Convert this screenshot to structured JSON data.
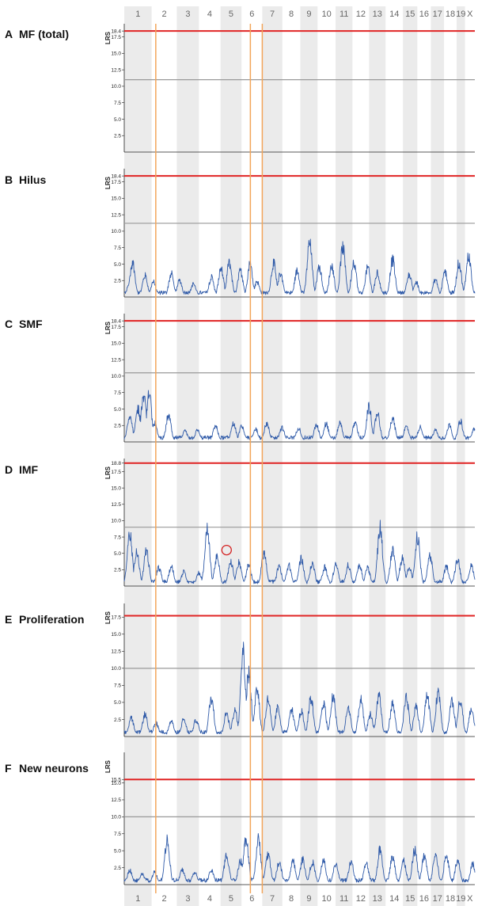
{
  "chromosomes": [
    "1",
    "2",
    "3",
    "4",
    "5",
    "6",
    "7",
    "8",
    "9",
    "10",
    "11",
    "12",
    "13",
    "14",
    "15",
    "16",
    "17",
    "18",
    "19",
    "X"
  ],
  "chromosome_relative_lengths": [
    1.98,
    1.82,
    1.6,
    1.56,
    1.52,
    1.5,
    1.45,
    1.3,
    1.25,
    1.3,
    1.22,
    1.2,
    1.2,
    1.25,
    1.04,
    0.98,
    0.95,
    0.91,
    0.61,
    0.71
  ],
  "colors": {
    "significance_line": "#e02424",
    "suggestive_line": "#999999",
    "trace": "#2f5aa8",
    "highlight_loci": "#f2a55a",
    "chromosome_band": "#ebebeb",
    "circle": "#d42020"
  },
  "highlight_loci_chromosomes": [
    "1",
    "5",
    "5",
    "15",
    "X"
  ],
  "chart_data": [
    {
      "type": "line",
      "panel_letter": "A",
      "title": "MF (total)",
      "ylabel": "LRS",
      "yticks": [
        "2.5",
        "5.0",
        "7.5",
        "10.0",
        "12.5",
        "15.0",
        "17.5",
        "18.4"
      ],
      "ytick_values": [
        2.5,
        5.0,
        7.5,
        10.0,
        12.5,
        15.0,
        17.5,
        18.4
      ],
      "ylim": [
        0,
        19.5
      ],
      "significance_threshold": 18.4,
      "suggestive_threshold": 11.0,
      "series": []
    },
    {
      "type": "line",
      "panel_letter": "B",
      "title": "Hilus",
      "ylabel": "LRS",
      "yticks": [
        "2.5",
        "5.0",
        "7.5",
        "10.0",
        "12.5",
        "15.0",
        "17.5",
        "18.4"
      ],
      "ytick_values": [
        2.5,
        5.0,
        7.5,
        10.0,
        12.5,
        15.0,
        17.5,
        18.4
      ],
      "ylim": [
        0,
        19.5
      ],
      "significance_threshold": 18.4,
      "suggestive_threshold": 11.2,
      "peaks": [
        [
          0.4,
          2.5
        ],
        [
          0.6,
          5.8
        ],
        [
          1.5,
          3.6
        ],
        [
          2.1,
          2.6
        ],
        [
          3.4,
          3.9
        ],
        [
          4.0,
          2.8
        ],
        [
          5.0,
          2.2
        ],
        [
          6.3,
          3.3
        ],
        [
          7.0,
          4.8
        ],
        [
          7.6,
          5.7
        ],
        [
          8.4,
          4.4
        ],
        [
          9.1,
          5.6
        ],
        [
          9.6,
          2.6
        ],
        [
          10.8,
          5.7
        ],
        [
          11.3,
          4.0
        ],
        [
          12.5,
          4.4
        ],
        [
          13.4,
          9.0
        ],
        [
          14.1,
          5.1
        ],
        [
          15.0,
          5.3
        ],
        [
          15.8,
          8.4
        ],
        [
          16.6,
          6.0
        ],
        [
          17.6,
          4.9
        ],
        [
          18.3,
          4.0
        ],
        [
          19.4,
          6.3
        ],
        [
          20.6,
          3.9
        ],
        [
          21.1,
          2.6
        ],
        [
          22.5,
          2.9
        ],
        [
          23.2,
          4.2
        ],
        [
          24.2,
          5.7
        ],
        [
          24.9,
          6.9
        ],
        [
          25.8,
          2.4
        ],
        [
          26.6,
          4.6
        ],
        [
          27.7,
          3.6
        ],
        [
          28.5,
          3.6
        ],
        [
          29.4,
          4.3
        ],
        [
          30.6,
          2.6
        ],
        [
          31.2,
          2.4
        ],
        [
          32.4,
          1.6
        ],
        [
          33.7,
          2.9
        ]
      ],
      "series": [
        {
          "values_shown_as": "trace"
        }
      ]
    },
    {
      "type": "line",
      "panel_letter": "C",
      "title": "SMF",
      "ylabel": "LRS",
      "yticks": [
        "2.5",
        "5.0",
        "7.5",
        "10.0",
        "12.5",
        "15.0",
        "17.5",
        "18.4"
      ],
      "ytick_values": [
        2.5,
        5.0,
        7.5,
        10.0,
        12.5,
        15.0,
        17.5,
        18.4
      ],
      "ylim": [
        0,
        19.5
      ],
      "significance_threshold": 18.4,
      "suggestive_threshold": 10.5,
      "peaks": [
        [
          0.4,
          4.5
        ],
        [
          1.0,
          5.5
        ],
        [
          1.4,
          7.8
        ],
        [
          1.8,
          8.0
        ],
        [
          2.2,
          3.2
        ],
        [
          3.2,
          4.4
        ],
        [
          4.4,
          1.8
        ],
        [
          5.3,
          2.0
        ],
        [
          6.6,
          2.7
        ],
        [
          7.9,
          3.1
        ],
        [
          8.5,
          2.6
        ],
        [
          9.5,
          2.2
        ],
        [
          10.3,
          3.1
        ],
        [
          11.4,
          2.4
        ],
        [
          12.6,
          2.4
        ],
        [
          13.9,
          2.8
        ],
        [
          14.6,
          3.1
        ],
        [
          15.6,
          3.2
        ],
        [
          16.7,
          3.2
        ],
        [
          17.7,
          5.8
        ],
        [
          18.3,
          5.0
        ],
        [
          19.4,
          4.0
        ],
        [
          20.4,
          2.6
        ],
        [
          21.4,
          2.5
        ],
        [
          22.5,
          2.0
        ],
        [
          23.5,
          2.8
        ],
        [
          24.3,
          3.6
        ],
        [
          25.3,
          2.2
        ],
        [
          26.2,
          6.9
        ],
        [
          27.2,
          2.4
        ],
        [
          28.4,
          11.6
        ],
        [
          29.4,
          3.1
        ],
        [
          30.5,
          2.4
        ],
        [
          31.6,
          1.8
        ],
        [
          32.7,
          1.5
        ],
        [
          33.6,
          2.4
        ]
      ],
      "series": [
        {
          "values_shown_as": "trace"
        }
      ]
    },
    {
      "type": "line",
      "panel_letter": "D",
      "title": "IMF",
      "ylabel": "LRS",
      "yticks": [
        "2.5",
        "5.0",
        "7.5",
        "10.0",
        "12.5",
        "15.0",
        "17.5",
        "18.8"
      ],
      "ytick_values": [
        2.5,
        5.0,
        7.5,
        10.0,
        12.5,
        15.0,
        17.5,
        18.8
      ],
      "ylim": [
        0,
        19.5
      ],
      "significance_threshold": 18.8,
      "suggestive_threshold": 9.0,
      "circle_marker": [
        7.4,
        5.5
      ],
      "peaks": [
        [
          0.4,
          9.0
        ],
        [
          0.9,
          5.8
        ],
        [
          1.6,
          6.1
        ],
        [
          2.5,
          3.1
        ],
        [
          3.4,
          3.3
        ],
        [
          4.3,
          2.4
        ],
        [
          5.4,
          2.2
        ],
        [
          6.0,
          9.5
        ],
        [
          6.7,
          4.8
        ],
        [
          7.7,
          4.1
        ],
        [
          8.3,
          4.0
        ],
        [
          9.0,
          3.5
        ],
        [
          10.1,
          5.6
        ],
        [
          11.2,
          3.3
        ],
        [
          11.9,
          3.5
        ],
        [
          12.8,
          4.7
        ],
        [
          13.6,
          3.8
        ],
        [
          14.5,
          3.2
        ],
        [
          15.3,
          3.6
        ],
        [
          16.2,
          3.5
        ],
        [
          17.0,
          3.6
        ],
        [
          17.6,
          3.0
        ],
        [
          18.5,
          9.7
        ],
        [
          19.4,
          6.0
        ],
        [
          20.1,
          4.6
        ],
        [
          20.6,
          3.2
        ],
        [
          21.2,
          8.2
        ],
        [
          22.1,
          5.1
        ],
        [
          23.3,
          3.3
        ],
        [
          24.1,
          4.6
        ],
        [
          25.1,
          3.4
        ],
        [
          26.1,
          3.2
        ],
        [
          27.0,
          3.6
        ],
        [
          27.9,
          4.0
        ],
        [
          29.1,
          6.2
        ],
        [
          30.4,
          4.3
        ],
        [
          31.4,
          3.2
        ],
        [
          32.3,
          3.2
        ],
        [
          33.2,
          2.1
        ],
        [
          33.8,
          8.0
        ]
      ],
      "series": [
        {
          "values_shown_as": "trace"
        }
      ]
    },
    {
      "type": "line",
      "panel_letter": "E",
      "title": "Proliferation",
      "ylabel": "LRS",
      "yticks": [
        "2.5",
        "5.0",
        "7.5",
        "10.0",
        "12.5",
        "15.0",
        "17.5"
      ],
      "ytick_values": [
        2.5,
        5.0,
        7.5,
        10.0,
        12.5,
        15.0,
        17.5
      ],
      "ylim": [
        0,
        19.5
      ],
      "significance_threshold": 17.7,
      "suggestive_threshold": 10.0,
      "peaks": [
        [
          0.5,
          3.0
        ],
        [
          1.5,
          3.6
        ],
        [
          2.3,
          2.2
        ],
        [
          3.4,
          2.5
        ],
        [
          4.3,
          2.8
        ],
        [
          5.2,
          2.7
        ],
        [
          6.3,
          6.2
        ],
        [
          7.4,
          3.8
        ],
        [
          8.0,
          4.2
        ],
        [
          8.6,
          13.3
        ],
        [
          9.0,
          10.3
        ],
        [
          9.6,
          7.6
        ],
        [
          10.4,
          6.0
        ],
        [
          11.1,
          4.6
        ],
        [
          12.1,
          4.4
        ],
        [
          12.8,
          4.1
        ],
        [
          13.5,
          6.2
        ],
        [
          14.4,
          5.5
        ],
        [
          15.1,
          6.5
        ],
        [
          16.2,
          4.6
        ],
        [
          17.1,
          5.9
        ],
        [
          17.8,
          3.6
        ],
        [
          18.4,
          6.5
        ],
        [
          19.4,
          5.3
        ],
        [
          20.4,
          6.1
        ],
        [
          21.1,
          4.8
        ],
        [
          21.9,
          6.8
        ],
        [
          22.7,
          7.3
        ],
        [
          23.7,
          5.6
        ],
        [
          24.3,
          5.9
        ],
        [
          25.1,
          4.4
        ],
        [
          26.1,
          6.2
        ],
        [
          27.2,
          3.7
        ],
        [
          28.3,
          3.9
        ],
        [
          29.4,
          5.8
        ],
        [
          30.4,
          6.5
        ],
        [
          30.9,
          3.7
        ],
        [
          31.8,
          2.6
        ],
        [
          32.6,
          3.0
        ],
        [
          33.7,
          8.2
        ]
      ],
      "series": [
        {
          "values_shown_as": "trace"
        }
      ]
    },
    {
      "type": "line",
      "panel_letter": "F",
      "title": "New neurons",
      "ylabel": "LRS",
      "yticks": [
        "2.5",
        "5.0",
        "7.5",
        "10.0",
        "12.5",
        "15.0",
        "15.5"
      ],
      "ytick_values": [
        2.5,
        5.0,
        7.5,
        10.0,
        12.5,
        15.0,
        15.5
      ],
      "ylim": [
        0,
        19.5
      ],
      "significance_threshold": 15.5,
      "suggestive_threshold": 10.0,
      "peaks": [
        [
          0.4,
          2.3
        ],
        [
          1.3,
          1.7
        ],
        [
          2.2,
          2.1
        ],
        [
          3.1,
          7.3
        ],
        [
          4.2,
          2.4
        ],
        [
          5.1,
          2.1
        ],
        [
          6.3,
          2.3
        ],
        [
          7.4,
          4.8
        ],
        [
          8.4,
          3.8
        ],
        [
          8.8,
          7.6
        ],
        [
          9.7,
          7.3
        ],
        [
          10.4,
          5.0
        ],
        [
          11.2,
          3.6
        ],
        [
          12.2,
          3.8
        ],
        [
          12.9,
          4.1
        ],
        [
          13.6,
          3.7
        ],
        [
          14.4,
          3.9
        ],
        [
          15.3,
          3.4
        ],
        [
          16.4,
          3.8
        ],
        [
          17.5,
          3.4
        ],
        [
          18.5,
          5.7
        ],
        [
          19.4,
          4.5
        ],
        [
          20.2,
          3.8
        ],
        [
          21.0,
          5.6
        ],
        [
          21.7,
          4.6
        ],
        [
          22.5,
          4.8
        ],
        [
          23.3,
          4.8
        ],
        [
          24.1,
          3.8
        ],
        [
          25.2,
          3.3
        ],
        [
          25.8,
          9.5
        ],
        [
          26.6,
          3.6
        ],
        [
          27.5,
          4.2
        ],
        [
          28.2,
          3.3
        ],
        [
          29.1,
          5.8
        ],
        [
          30.0,
          7.0
        ],
        [
          30.9,
          3.6
        ],
        [
          31.6,
          3.7
        ],
        [
          32.3,
          4.1
        ],
        [
          33.1,
          5.8
        ],
        [
          33.7,
          8.6
        ]
      ],
      "series": [
        {
          "values_shown_as": "trace"
        }
      ]
    }
  ]
}
